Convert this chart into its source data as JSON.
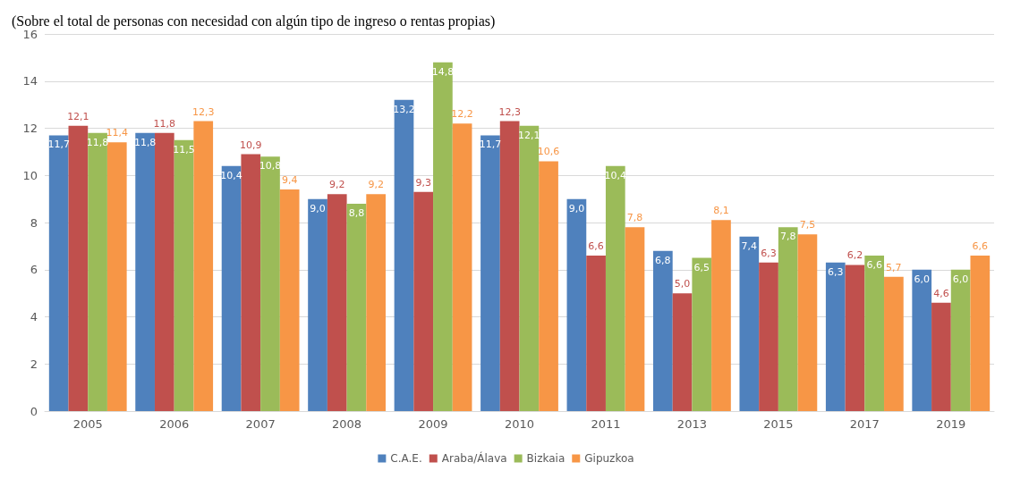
{
  "chart_data": {
    "type": "bar",
    "title": "(Sobre el total de personas con necesidad con algún tipo de ingreso o rentas propias)",
    "categories": [
      "2005",
      "2006",
      "2007",
      "2008",
      "2009",
      "2010",
      "2011",
      "2013",
      "2015",
      "2017",
      "2019"
    ],
    "series": [
      {
        "name": "C.A.E.",
        "color": "#4f81bd",
        "values": [
          11.7,
          11.8,
          10.4,
          9.0,
          13.2,
          11.7,
          9.0,
          6.8,
          7.4,
          6.3,
          6.0
        ],
        "value_labels": [
          "11,7",
          "11,8",
          "10,4",
          "9,0",
          "13,2",
          "11,7",
          "9,0",
          "6,8",
          "7,4",
          "6,3",
          "6,0"
        ]
      },
      {
        "name": "Araba/Álava",
        "color": "#c0504d",
        "values": [
          12.1,
          11.8,
          10.9,
          9.2,
          9.3,
          12.3,
          6.6,
          5.0,
          6.3,
          6.2,
          4.6
        ],
        "value_labels": [
          "12,1",
          "11,8",
          "10,9",
          "9,2",
          "9,3",
          "12,3",
          "6,6",
          "5,0",
          "6,3",
          "6,2",
          "4,6"
        ]
      },
      {
        "name": "Bizkaia",
        "color": "#9bbb59",
        "values": [
          11.8,
          11.5,
          10.8,
          8.8,
          14.8,
          12.1,
          10.4,
          6.5,
          7.8,
          6.6,
          6.0
        ],
        "value_labels": [
          "11,8",
          "11,5",
          "10,8",
          "8,8",
          "14,8",
          "12,1",
          "10,4",
          "6,5",
          "7,8",
          "6,6",
          "6,0"
        ]
      },
      {
        "name": "Gipuzkoa",
        "color": "#f79646",
        "values": [
          11.4,
          12.3,
          9.4,
          9.2,
          12.2,
          10.6,
          7.8,
          8.1,
          7.5,
          5.7,
          6.6
        ],
        "value_labels": [
          "11,4",
          "12,3",
          "9,4",
          "9,2",
          "12,2",
          "10,6",
          "7,8",
          "8,1",
          "7,5",
          "5,7",
          "6,6"
        ]
      }
    ],
    "ylim": [
      0,
      16
    ],
    "yticks": [
      0,
      2,
      4,
      6,
      8,
      10,
      12,
      14,
      16
    ],
    "grid": "y",
    "legend": "bottom"
  }
}
